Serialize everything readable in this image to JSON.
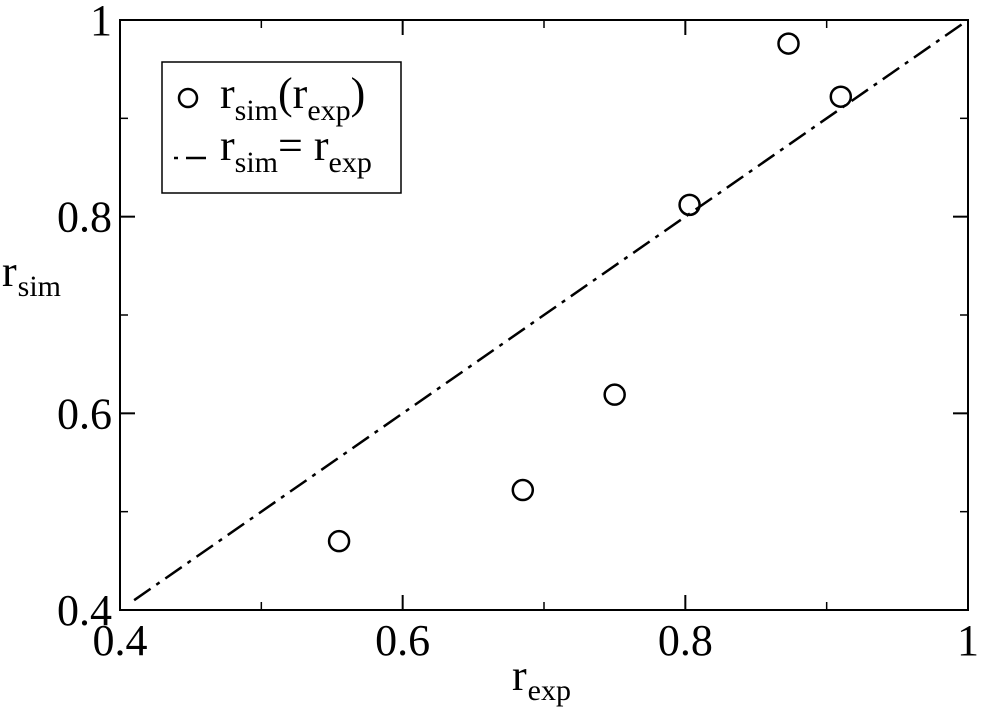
{
  "chart_data": {
    "type": "scatter",
    "xlabel": {
      "base": "r",
      "sub": "exp"
    },
    "ylabel": {
      "base": "r",
      "sub": "sim"
    },
    "xlim": [
      0.4,
      1.0
    ],
    "ylim": [
      0.4,
      1.0
    ],
    "x_major_ticks": [
      0.4,
      0.6,
      0.8,
      1.0
    ],
    "x_tick_labels": [
      "0.4",
      "0.6",
      "0.8",
      "1"
    ],
    "x_minor_ticks": [
      0.5,
      0.7,
      0.9
    ],
    "y_major_ticks": [
      0.4,
      0.6,
      0.8,
      1.0
    ],
    "y_tick_labels": [
      "0.4",
      "0.6",
      "0.8",
      "1"
    ],
    "y_minor_ticks": [
      0.5,
      0.7,
      0.9
    ],
    "grid": false,
    "legend_position": "top-left",
    "series": [
      {
        "name": {
          "base": "r",
          "sub": "sim",
          "open": "(",
          "inner_base": "r",
          "inner_sub": "exp",
          "close": ")"
        },
        "marker": "open-circle",
        "color": "#000000",
        "x": [
          0.555,
          0.685,
          0.75,
          0.803,
          0.873,
          0.91
        ],
        "y": [
          0.47,
          0.522,
          0.619,
          0.812,
          0.976,
          0.922
        ]
      },
      {
        "name": {
          "base": "r",
          "sub": "sim",
          "eq": "= ",
          "rhs_base": "r",
          "rhs_sub": "exp"
        },
        "style": "dash-dot",
        "color": "#000000",
        "x": [
          0.41,
          1.0
        ],
        "y": [
          0.41,
          1.0
        ]
      }
    ]
  }
}
